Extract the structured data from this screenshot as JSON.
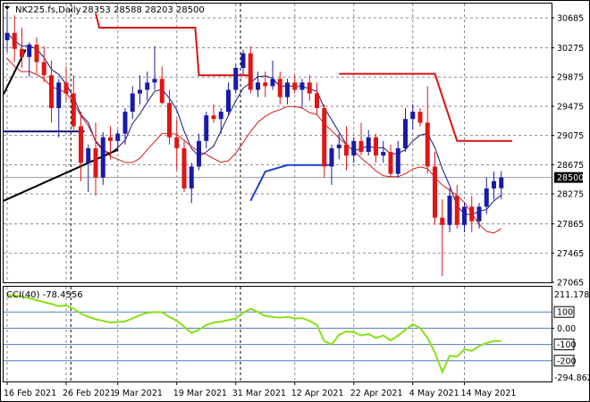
{
  "header": {
    "symbol_label": "NK225.fs,Daily",
    "ohlc": "28353 28588 28203 28500"
  },
  "indicator": {
    "label": "CCI(40) -78.4556",
    "scale_top": "211.1788",
    "scale_bottom": "-294.862",
    "levels": [
      {
        "label": "100",
        "value": 100,
        "boxed": true
      },
      {
        "label": "0.00",
        "value": 0,
        "boxed": false
      },
      {
        "label": "-100",
        "value": -100,
        "boxed": true
      },
      {
        "label": "-200",
        "value": -200,
        "boxed": true
      }
    ]
  },
  "price_axis": {
    "ticks": [
      "30685",
      "30275",
      "29875",
      "29475",
      "29075",
      "28675",
      "28275",
      "27865",
      "27465",
      "27065"
    ],
    "current_price": "28500"
  },
  "time_axis": {
    "labels": [
      "16 Feb 2021",
      "26 Feb 2021",
      "9 Mar 2021",
      "19 Mar 2021",
      "31 Mar 2021",
      "12 Apr 2021",
      "22 Apr 2021",
      "4 May 2021",
      "14 May 2021"
    ]
  },
  "colors": {
    "up_candle": "#1a1aa8",
    "down_candle": "#e01515",
    "ma_fast": "#d61b1b",
    "ma_slow": "#13137a",
    "resistance": "#dd1111",
    "support": "#1d3fd0",
    "trendline": "#000000",
    "cci": "#88e015"
  },
  "chart_data": {
    "type": "candlestick",
    "price_range": [
      27065,
      30685
    ],
    "dates": [
      "16 Feb 2021",
      "17 Feb",
      "18 Feb",
      "19 Feb",
      "22 Feb",
      "23 Feb",
      "24 Feb",
      "25 Feb",
      "26 Feb 2021",
      "1 Mar",
      "2 Mar",
      "3 Mar",
      "4 Mar",
      "5 Mar",
      "8 Mar",
      "9 Mar 2021",
      "10 Mar",
      "11 Mar",
      "12 Mar",
      "15 Mar",
      "16 Mar",
      "17 Mar",
      "18 Mar",
      "19 Mar 2021",
      "22 Mar",
      "23 Mar",
      "24 Mar",
      "25 Mar",
      "26 Mar",
      "29 Mar",
      "30 Mar",
      "31 Mar 2021",
      "1 Apr",
      "2 Apr",
      "5 Apr",
      "6 Apr",
      "7 Apr",
      "8 Apr",
      "9 Apr",
      "12 Apr 2021",
      "13 Apr",
      "14 Apr",
      "15 Apr",
      "16 Apr",
      "19 Apr",
      "20 Apr",
      "21 Apr",
      "22 Apr 2021",
      "23 Apr",
      "26 Apr",
      "27 Apr",
      "28 Apr",
      "29 Apr",
      "30 Apr",
      "3 May",
      "4 May 2021",
      "6 May",
      "7 May",
      "10 May",
      "11 May",
      "12 May",
      "13 May",
      "14 May 2021",
      "17 May",
      "18 May",
      "19 May",
      "20 May",
      "21 May"
    ],
    "candles": [
      [
        30380,
        30780,
        30220,
        30480
      ],
      [
        30480,
        30720,
        30080,
        30260
      ],
      [
        30260,
        30550,
        30000,
        30150
      ],
      [
        30150,
        30350,
        29880,
        30320
      ],
      [
        30320,
        30420,
        29920,
        30080
      ],
      [
        30080,
        30300,
        29800,
        29900
      ],
      [
        29900,
        30100,
        29250,
        29450
      ],
      [
        29450,
        29850,
        29050,
        29800
      ],
      [
        29800,
        30020,
        29550,
        29650
      ],
      [
        29650,
        29900,
        29150,
        29200
      ],
      [
        29200,
        29400,
        28450,
        28700
      ],
      [
        28700,
        28950,
        28300,
        28900
      ],
      [
        28900,
        29250,
        28250,
        28500
      ],
      [
        28500,
        29120,
        28400,
        29050
      ],
      [
        29050,
        29200,
        28750,
        29000
      ],
      [
        29000,
        29150,
        28850,
        29100
      ],
      [
        29100,
        29450,
        28950,
        29400
      ],
      [
        29400,
        29750,
        29300,
        29650
      ],
      [
        29650,
        29900,
        29500,
        29700
      ],
      [
        29700,
        29950,
        29550,
        29800
      ],
      [
        29800,
        30300,
        29700,
        29850
      ],
      [
        29850,
        30020,
        29500,
        29520
      ],
      [
        29520,
        29700,
        28950,
        29050
      ],
      [
        29050,
        29300,
        28600,
        28900
      ],
      [
        28900,
        29000,
        28300,
        28350
      ],
      [
        28350,
        28700,
        28150,
        28650
      ],
      [
        28650,
        29100,
        28600,
        29000
      ],
      [
        29000,
        29400,
        28900,
        29350
      ],
      [
        29350,
        29500,
        29250,
        29300
      ],
      [
        29300,
        29450,
        29100,
        29400
      ],
      [
        29400,
        29800,
        29350,
        29700
      ],
      [
        29700,
        30050,
        29650,
        30000
      ],
      [
        30000,
        30250,
        29900,
        30200
      ],
      [
        30200,
        30300,
        29650,
        29700
      ],
      [
        29700,
        29950,
        29600,
        29800
      ],
      [
        29800,
        29950,
        29600,
        29750
      ],
      [
        29750,
        30100,
        29700,
        29850
      ],
      [
        29850,
        29950,
        29500,
        29600
      ],
      [
        29600,
        29850,
        29500,
        29800
      ],
      [
        29800,
        29900,
        29650,
        29700
      ],
      [
        29700,
        29850,
        29450,
        29800
      ],
      [
        29800,
        29900,
        29550,
        29650
      ],
      [
        29650,
        29800,
        29350,
        29450
      ],
      [
        29450,
        29500,
        28500,
        28650
      ],
      [
        28650,
        28950,
        28400,
        28900
      ],
      [
        28900,
        29100,
        28750,
        28950
      ],
      [
        28950,
        29200,
        28600,
        28800
      ],
      [
        28800,
        29050,
        28700,
        29000
      ],
      [
        29000,
        29250,
        28800,
        28850
      ],
      [
        28850,
        29150,
        28800,
        29050
      ],
      [
        29050,
        29100,
        28700,
        28800
      ],
      [
        28800,
        29000,
        28700,
        28850
      ],
      [
        28850,
        28950,
        28500,
        28550
      ],
      [
        28550,
        29000,
        28500,
        28900
      ],
      [
        28900,
        29450,
        28850,
        29300
      ],
      [
        29300,
        29500,
        29150,
        29400
      ],
      [
        29400,
        29450,
        29200,
        29250
      ],
      [
        29250,
        29750,
        28550,
        28650
      ],
      [
        28650,
        28850,
        27850,
        27950
      ],
      [
        27950,
        28200,
        27150,
        27850
      ],
      [
        27850,
        28350,
        27750,
        28250
      ],
      [
        28250,
        28400,
        27800,
        27850
      ],
      [
        27850,
        28150,
        27750,
        28100
      ],
      [
        28100,
        28250,
        27750,
        27900
      ],
      [
        27900,
        28150,
        27800,
        28100
      ],
      [
        28100,
        28500,
        28000,
        28350
      ],
      [
        28350,
        28580,
        28200,
        28450
      ],
      [
        28353,
        28588,
        28203,
        28500
      ]
    ],
    "indicator_range": [
      -294.862,
      211.1788
    ],
    "cci": [
      205,
      200,
      195,
      185,
      172,
      160,
      150,
      135,
      140,
      120,
      90,
      70,
      55,
      45,
      35,
      38,
      42,
      60,
      80,
      95,
      100,
      98,
      70,
      45,
      10,
      -30,
      -10,
      20,
      35,
      40,
      50,
      60,
      95,
      120,
      100,
      75,
      70,
      65,
      70,
      60,
      62,
      45,
      20,
      -80,
      -100,
      -40,
      -20,
      -25,
      -45,
      -35,
      -60,
      -45,
      -75,
      -45,
      -10,
      25,
      0,
      -60,
      -150,
      -270,
      -170,
      -175,
      -130,
      -140,
      -110,
      -90,
      -80,
      -78
    ]
  }
}
